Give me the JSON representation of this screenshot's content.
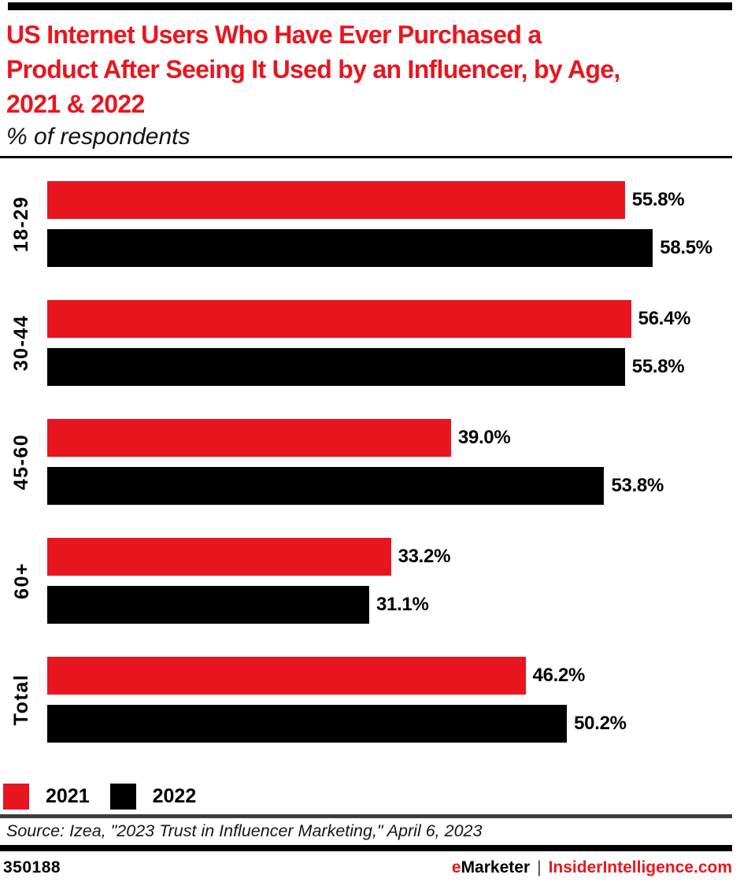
{
  "header": {
    "title_lines": [
      "US Internet Users Who Have Ever Purchased a",
      "Product After Seeing It Used by an Influencer, by Age,",
      "2021 & 2022"
    ],
    "subtitle": "% of respondents"
  },
  "chart_data": {
    "type": "bar",
    "orientation": "horizontal",
    "title": "US Internet Users Who Have Ever Purchased a Product After Seeing It Used by an Influencer, by Age, 2021 & 2022",
    "subtitle": "% of respondents",
    "categories": [
      "18-29",
      "30-44",
      "45-60",
      "60+",
      "Total"
    ],
    "series": [
      {
        "name": "2021",
        "color": "#e8161f",
        "values": [
          55.8,
          56.4,
          39.0,
          33.2,
          46.2
        ]
      },
      {
        "name": "2022",
        "color": "#000000",
        "values": [
          58.5,
          55.8,
          53.8,
          31.1,
          50.2
        ]
      }
    ],
    "value_suffix": "%",
    "xlim": [
      0,
      67
    ],
    "grid": false,
    "legend_position": "bottom-left",
    "data_labels": true
  },
  "legend": [
    {
      "label": "2021",
      "color": "#e8161f"
    },
    {
      "label": "2022",
      "color": "#000000"
    }
  ],
  "source": "Source: Izea, \"2023 Trust in Influencer Marketing,\" April 6, 2023",
  "footer": {
    "chart_id": "350188",
    "brand_e": "e",
    "brand_marketer": "Marketer",
    "brand_divider": "|",
    "brand_site": "InsiderIntelligence.com"
  },
  "colors": {
    "accent_red": "#e8161f",
    "bar_black": "#000000",
    "rule_gray": "#3d3d3d"
  }
}
